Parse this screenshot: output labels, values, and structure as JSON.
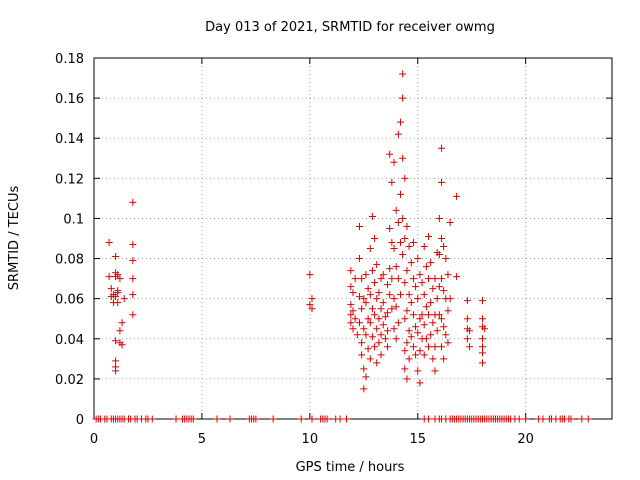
{
  "chart_data": {
    "type": "scatter",
    "title": "Day 013 of 2021, SRMTID for receiver owmg",
    "xlabel": "GPS time / hours",
    "ylabel": "SRMTID / TECUs",
    "xlim": [
      0,
      24
    ],
    "ylim": [
      0,
      0.18
    ],
    "xticks": [
      0,
      5,
      10,
      15,
      20
    ],
    "xtick_labels": [
      "0",
      "5",
      "10",
      "15",
      "20"
    ],
    "yticks": [
      0,
      0.02,
      0.04,
      0.06,
      0.08,
      0.1,
      0.12,
      0.14,
      0.16,
      0.18
    ],
    "ytick_labels": [
      "0",
      "0.02",
      "0.04",
      "0.06",
      "0.08",
      "0.1",
      "0.12",
      "0.14",
      "0.16",
      "0.18"
    ],
    "grid": true,
    "color": "#e00000",
    "marker": "plus",
    "series": [
      {
        "name": "SRMTID",
        "points": [
          [
            0.7,
            0.088
          ],
          [
            0.7,
            0.071
          ],
          [
            0.8,
            0.065
          ],
          [
            0.8,
            0.061
          ],
          [
            0.9,
            0.062
          ],
          [
            0.9,
            0.058
          ],
          [
            1.0,
            0.081
          ],
          [
            1.0,
            0.073
          ],
          [
            1.0,
            0.071
          ],
          [
            1.0,
            0.061
          ],
          [
            1.0,
            0.039
          ],
          [
            1.0,
            0.029
          ],
          [
            1.0,
            0.026
          ],
          [
            1.0,
            0.024
          ],
          [
            1.1,
            0.072
          ],
          [
            1.1,
            0.064
          ],
          [
            1.1,
            0.063
          ],
          [
            1.1,
            0.058
          ],
          [
            1.2,
            0.07
          ],
          [
            1.2,
            0.044
          ],
          [
            1.2,
            0.038
          ],
          [
            1.3,
            0.048
          ],
          [
            1.3,
            0.037
          ],
          [
            1.4,
            0.06
          ],
          [
            1.8,
            0.108
          ],
          [
            1.8,
            0.087
          ],
          [
            1.8,
            0.079
          ],
          [
            1.8,
            0.07
          ],
          [
            1.8,
            0.062
          ],
          [
            1.8,
            0.052
          ],
          [
            10.0,
            0.072
          ],
          [
            10.0,
            0.057
          ],
          [
            10.1,
            0.06
          ],
          [
            10.1,
            0.055
          ],
          [
            11.9,
            0.074
          ],
          [
            11.9,
            0.066
          ],
          [
            11.9,
            0.057
          ],
          [
            11.9,
            0.052
          ],
          [
            11.9,
            0.048
          ],
          [
            12.0,
            0.063
          ],
          [
            12.0,
            0.054
          ],
          [
            12.0,
            0.045
          ],
          [
            12.1,
            0.07
          ],
          [
            12.1,
            0.05
          ],
          [
            12.2,
            0.042
          ],
          [
            12.3,
            0.096
          ],
          [
            12.3,
            0.08
          ],
          [
            12.3,
            0.061
          ],
          [
            12.3,
            0.048
          ],
          [
            12.4,
            0.07
          ],
          [
            12.4,
            0.055
          ],
          [
            12.4,
            0.038
          ],
          [
            12.4,
            0.032
          ],
          [
            12.5,
            0.06
          ],
          [
            12.5,
            0.045
          ],
          [
            12.5,
            0.025
          ],
          [
            12.5,
            0.015
          ],
          [
            12.6,
            0.072
          ],
          [
            12.6,
            0.058
          ],
          [
            12.6,
            0.042
          ],
          [
            12.6,
            0.021
          ],
          [
            12.7,
            0.065
          ],
          [
            12.7,
            0.05
          ],
          [
            12.7,
            0.035
          ],
          [
            12.8,
            0.085
          ],
          [
            12.8,
            0.062
          ],
          [
            12.8,
            0.048
          ],
          [
            12.8,
            0.03
          ],
          [
            12.9,
            0.101
          ],
          [
            12.9,
            0.074
          ],
          [
            12.9,
            0.055
          ],
          [
            12.9,
            0.041
          ],
          [
            13.0,
            0.09
          ],
          [
            13.0,
            0.068
          ],
          [
            13.0,
            0.052
          ],
          [
            13.0,
            0.036
          ],
          [
            13.1,
            0.077
          ],
          [
            13.1,
            0.06
          ],
          [
            13.1,
            0.045
          ],
          [
            13.1,
            0.028
          ],
          [
            13.2,
            0.063
          ],
          [
            13.2,
            0.05
          ],
          [
            13.2,
            0.038
          ],
          [
            13.3,
            0.07
          ],
          [
            13.3,
            0.055
          ],
          [
            13.3,
            0.042
          ],
          [
            13.3,
            0.032
          ],
          [
            13.4,
            0.072
          ],
          [
            13.4,
            0.058
          ],
          [
            13.4,
            0.047
          ],
          [
            13.5,
            0.051
          ],
          [
            13.5,
            0.04
          ],
          [
            13.6,
            0.067
          ],
          [
            13.6,
            0.053
          ],
          [
            13.6,
            0.044
          ],
          [
            13.6,
            0.036
          ],
          [
            13.7,
            0.132
          ],
          [
            13.7,
            0.095
          ],
          [
            13.7,
            0.075
          ],
          [
            13.7,
            0.062
          ],
          [
            13.8,
            0.118
          ],
          [
            13.8,
            0.088
          ],
          [
            13.8,
            0.07
          ],
          [
            13.8,
            0.055
          ],
          [
            13.9,
            0.128
          ],
          [
            13.9,
            0.085
          ],
          [
            13.9,
            0.06
          ],
          [
            13.9,
            0.045
          ],
          [
            14.0,
            0.104
          ],
          [
            14.0,
            0.076
          ],
          [
            14.0,
            0.056
          ],
          [
            14.0,
            0.04
          ],
          [
            14.1,
            0.142
          ],
          [
            14.1,
            0.098
          ],
          [
            14.1,
            0.07
          ],
          [
            14.1,
            0.048
          ],
          [
            14.2,
            0.148
          ],
          [
            14.2,
            0.112
          ],
          [
            14.2,
            0.088
          ],
          [
            14.2,
            0.062
          ],
          [
            14.3,
            0.172
          ],
          [
            14.3,
            0.16
          ],
          [
            14.3,
            0.13
          ],
          [
            14.3,
            0.1
          ],
          [
            14.3,
            0.082
          ],
          [
            14.4,
            0.12
          ],
          [
            14.4,
            0.09
          ],
          [
            14.4,
            0.068
          ],
          [
            14.4,
            0.05
          ],
          [
            14.4,
            0.034
          ],
          [
            14.4,
            0.025
          ],
          [
            14.5,
            0.096
          ],
          [
            14.5,
            0.074
          ],
          [
            14.5,
            0.054
          ],
          [
            14.5,
            0.038
          ],
          [
            14.5,
            0.02
          ],
          [
            14.6,
            0.086
          ],
          [
            14.6,
            0.062
          ],
          [
            14.6,
            0.044
          ],
          [
            14.6,
            0.03
          ],
          [
            14.7,
            0.078
          ],
          [
            14.7,
            0.058
          ],
          [
            14.7,
            0.041
          ],
          [
            14.8,
            0.088
          ],
          [
            14.8,
            0.07
          ],
          [
            14.8,
            0.052
          ],
          [
            14.8,
            0.036
          ],
          [
            14.9,
            0.066
          ],
          [
            14.9,
            0.046
          ],
          [
            14.9,
            0.032
          ],
          [
            15.0,
            0.08
          ],
          [
            15.0,
            0.06
          ],
          [
            15.0,
            0.043
          ],
          [
            15.0,
            0.024
          ],
          [
            15.1,
            0.072
          ],
          [
            15.1,
            0.05
          ],
          [
            15.1,
            0.034
          ],
          [
            15.1,
            0.018
          ],
          [
            15.2,
            0.068
          ],
          [
            15.2,
            0.052
          ],
          [
            15.2,
            0.04
          ],
          [
            15.3,
            0.086
          ],
          [
            15.3,
            0.062
          ],
          [
            15.3,
            0.047
          ],
          [
            15.3,
            0.032
          ],
          [
            15.4,
            0.076
          ],
          [
            15.4,
            0.056
          ],
          [
            15.4,
            0.04
          ],
          [
            15.5,
            0.091
          ],
          [
            15.5,
            0.07
          ],
          [
            15.5,
            0.052
          ],
          [
            15.5,
            0.036
          ],
          [
            15.6,
            0.078
          ],
          [
            15.6,
            0.058
          ],
          [
            15.6,
            0.042
          ],
          [
            15.7,
            0.065
          ],
          [
            15.7,
            0.048
          ],
          [
            15.7,
            0.03
          ],
          [
            15.8,
            0.07
          ],
          [
            15.8,
            0.052
          ],
          [
            15.8,
            0.036
          ],
          [
            15.8,
            0.024
          ],
          [
            15.9,
            0.083
          ],
          [
            15.9,
            0.06
          ],
          [
            15.9,
            0.044
          ],
          [
            16.0,
            0.1
          ],
          [
            16.0,
            0.082
          ],
          [
            16.0,
            0.066
          ],
          [
            16.0,
            0.052
          ],
          [
            16.1,
            0.135
          ],
          [
            16.1,
            0.118
          ],
          [
            16.1,
            0.09
          ],
          [
            16.1,
            0.07
          ],
          [
            16.1,
            0.05
          ],
          [
            16.1,
            0.036
          ],
          [
            16.2,
            0.086
          ],
          [
            16.2,
            0.064
          ],
          [
            16.2,
            0.046
          ],
          [
            16.2,
            0.03
          ],
          [
            16.3,
            0.08
          ],
          [
            16.3,
            0.06
          ],
          [
            16.3,
            0.042
          ],
          [
            16.4,
            0.072
          ],
          [
            16.4,
            0.054
          ],
          [
            16.4,
            0.038
          ],
          [
            16.5,
            0.098
          ],
          [
            16.5,
            0.06
          ],
          [
            16.8,
            0.111
          ],
          [
            16.8,
            0.071
          ],
          [
            17.3,
            0.059
          ],
          [
            17.3,
            0.05
          ],
          [
            17.3,
            0.045
          ],
          [
            17.3,
            0.04
          ],
          [
            17.4,
            0.044
          ],
          [
            17.4,
            0.036
          ],
          [
            18.0,
            0.059
          ],
          [
            18.0,
            0.05
          ],
          [
            18.0,
            0.046
          ],
          [
            18.0,
            0.04
          ],
          [
            18.0,
            0.036
          ],
          [
            18.0,
            0.033
          ],
          [
            18.0,
            0.028
          ],
          [
            18.1,
            0.045
          ],
          [
            0.1,
            0
          ],
          [
            0.2,
            0
          ],
          [
            0.3,
            0
          ],
          [
            0.5,
            0
          ],
          [
            0.6,
            0
          ],
          [
            0.8,
            0
          ],
          [
            0.9,
            0
          ],
          [
            1.0,
            0
          ],
          [
            1.1,
            0
          ],
          [
            1.2,
            0
          ],
          [
            1.3,
            0
          ],
          [
            1.4,
            0
          ],
          [
            1.6,
            0
          ],
          [
            1.7,
            0
          ],
          [
            1.9,
            0
          ],
          [
            2.0,
            0
          ],
          [
            2.2,
            0
          ],
          [
            2.4,
            0
          ],
          [
            2.5,
            0
          ],
          [
            2.7,
            0
          ],
          [
            3.8,
            0
          ],
          [
            4.1,
            0
          ],
          [
            4.2,
            0
          ],
          [
            4.3,
            0
          ],
          [
            4.4,
            0
          ],
          [
            4.5,
            0
          ],
          [
            4.6,
            0
          ],
          [
            5.7,
            0
          ],
          [
            6.3,
            0
          ],
          [
            7.2,
            0
          ],
          [
            7.3,
            0
          ],
          [
            7.4,
            0
          ],
          [
            7.5,
            0
          ],
          [
            8.3,
            0
          ],
          [
            9.6,
            0
          ],
          [
            10.1,
            0
          ],
          [
            10.5,
            0
          ],
          [
            10.6,
            0
          ],
          [
            10.7,
            0
          ],
          [
            10.8,
            0
          ],
          [
            11.2,
            0
          ],
          [
            11.4,
            0
          ],
          [
            11.7,
            0
          ],
          [
            15.3,
            0
          ],
          [
            15.5,
            0
          ],
          [
            15.8,
            0
          ],
          [
            16.0,
            0
          ],
          [
            16.1,
            0
          ],
          [
            16.3,
            0
          ],
          [
            16.5,
            0
          ],
          [
            16.6,
            0
          ],
          [
            16.7,
            0
          ],
          [
            16.8,
            0
          ],
          [
            16.9,
            0
          ],
          [
            17.0,
            0
          ],
          [
            17.1,
            0
          ],
          [
            17.2,
            0
          ],
          [
            17.3,
            0
          ],
          [
            17.4,
            0
          ],
          [
            17.5,
            0
          ],
          [
            17.6,
            0
          ],
          [
            17.7,
            0
          ],
          [
            17.8,
            0
          ],
          [
            17.9,
            0
          ],
          [
            18.0,
            0
          ],
          [
            18.1,
            0
          ],
          [
            18.2,
            0
          ],
          [
            18.3,
            0
          ],
          [
            18.4,
            0
          ],
          [
            18.5,
            0
          ],
          [
            18.6,
            0
          ],
          [
            18.7,
            0
          ],
          [
            18.8,
            0
          ],
          [
            18.9,
            0
          ],
          [
            19.0,
            0
          ],
          [
            19.1,
            0
          ],
          [
            19.2,
            0
          ],
          [
            19.3,
            0
          ],
          [
            19.5,
            0
          ],
          [
            19.7,
            0
          ],
          [
            20.0,
            0
          ],
          [
            20.6,
            0
          ],
          [
            20.8,
            0
          ],
          [
            21.1,
            0
          ],
          [
            21.2,
            0
          ],
          [
            21.4,
            0
          ],
          [
            21.6,
            0
          ],
          [
            21.7,
            0
          ],
          [
            21.8,
            0
          ],
          [
            22.0,
            0
          ],
          [
            22.1,
            0
          ],
          [
            22.6,
            0
          ],
          [
            22.9,
            0
          ]
        ]
      }
    ]
  }
}
